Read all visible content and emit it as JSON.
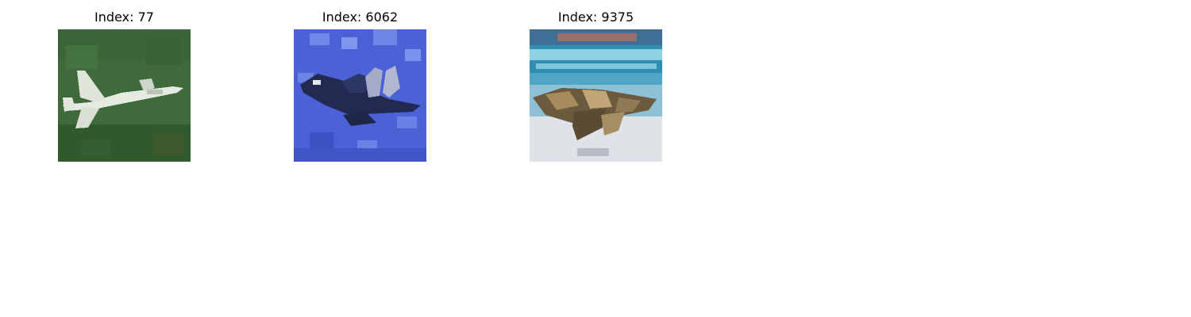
{
  "panels": [
    {
      "title": "Index: 77",
      "image": "fighter-jet-over-green-field"
    },
    {
      "title": "Index: 6062",
      "image": "dark-jet-over-blue-sky"
    },
    {
      "title": "Index: 9375",
      "image": "camouflaged-jet-book-cover"
    }
  ]
}
